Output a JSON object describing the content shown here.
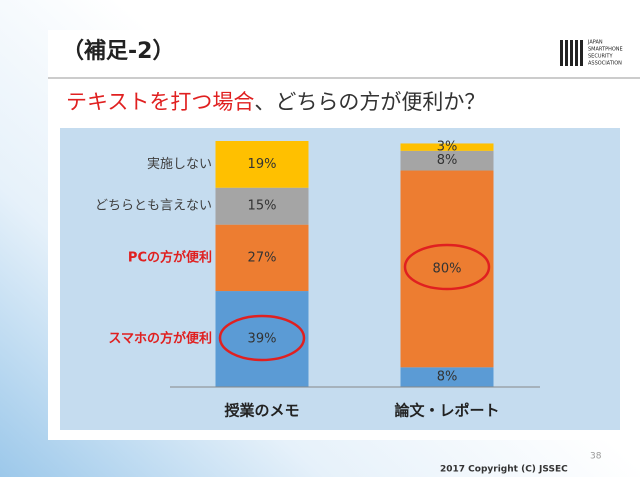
{
  "header": {
    "title": "（補足-2）",
    "subtitle_parts": [
      "テキストを打つ場合",
      "、どちらの方が便利か？"
    ],
    "logo": [
      "JAPAN",
      "SMARTPHONE",
      "SECURITY",
      "ASSOCIATION"
    ]
  },
  "chart_data": {
    "type": "stacked-bar",
    "categories": [
      "授業のメモ",
      "論文・レポート"
    ],
    "ylim": [
      0,
      100
    ],
    "series": [
      {
        "name": "スマホの方が便利",
        "color": "#5b9bd5",
        "label_color": "#e02020",
        "values": [
          39,
          8
        ],
        "value_labels": [
          "39%",
          "8%"
        ]
      },
      {
        "name": "PCの方が便利",
        "color": "#ed7d31",
        "label_color": "#e02020",
        "values": [
          27,
          80
        ],
        "value_labels": [
          "27%",
          "80%"
        ]
      },
      {
        "name": "どちらとも言えない",
        "color": "#a5a5a5",
        "label_color": "#404040",
        "values": [
          15,
          8
        ],
        "value_labels": [
          "15%",
          "8%"
        ]
      },
      {
        "name": "実施しない",
        "color": "#ffc000",
        "label_color": "#404040",
        "values": [
          19,
          3
        ],
        "value_labels": [
          "19%",
          "3%"
        ]
      }
    ]
  },
  "footer": {
    "page": "38",
    "copyright": "2017 Copyright (C) JSSEC"
  }
}
